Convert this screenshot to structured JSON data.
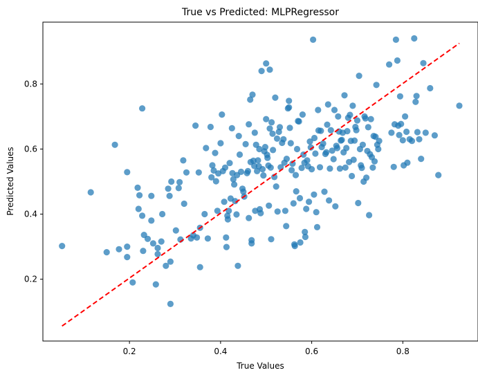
{
  "chart_data": {
    "type": "scatter",
    "title": "True vs Predicted: MLPRegressor",
    "xlabel": "True Values",
    "ylabel": "Predicted Values",
    "xlim": [
      0.01,
      0.965
    ],
    "ylim": [
      0.01,
      0.99
    ],
    "xticks": [
      0.2,
      0.4,
      0.6,
      0.8
    ],
    "yticks": [
      0.2,
      0.4,
      0.6,
      0.8
    ],
    "grid": false,
    "point_color": "#1f77b4",
    "line_color": "#ff0000",
    "reference_line": {
      "x": [
        0.052,
        0.924
      ],
      "y": [
        0.056,
        0.925
      ]
    },
    "points": [
      [
        0.052,
        0.302
      ],
      [
        0.115,
        0.467
      ],
      [
        0.15,
        0.283
      ],
      [
        0.168,
        0.613
      ],
      [
        0.177,
        0.292
      ],
      [
        0.195,
        0.529
      ],
      [
        0.195,
        0.3
      ],
      [
        0.195,
        0.268
      ],
      [
        0.207,
        0.19
      ],
      [
        0.218,
        0.481
      ],
      [
        0.22,
        0.416
      ],
      [
        0.222,
        0.458
      ],
      [
        0.228,
        0.725
      ],
      [
        0.228,
        0.395
      ],
      [
        0.23,
        0.287
      ],
      [
        0.232,
        0.336
      ],
      [
        0.24,
        0.324
      ],
      [
        0.248,
        0.456
      ],
      [
        0.248,
        0.38
      ],
      [
        0.252,
        0.31
      ],
      [
        0.258,
        0.184
      ],
      [
        0.262,
        0.296
      ],
      [
        0.262,
        0.277
      ],
      [
        0.27,
        0.316
      ],
      [
        0.272,
        0.4
      ],
      [
        0.28,
        0.241
      ],
      [
        0.285,
        0.478
      ],
      [
        0.288,
        0.456
      ],
      [
        0.29,
        0.124
      ],
      [
        0.29,
        0.254
      ],
      [
        0.292,
        0.5
      ],
      [
        0.302,
        0.35
      ],
      [
        0.308,
        0.48
      ],
      [
        0.31,
        0.498
      ],
      [
        0.312,
        0.322
      ],
      [
        0.318,
        0.565
      ],
      [
        0.32,
        0.432
      ],
      [
        0.325,
        0.528
      ],
      [
        0.335,
        0.325
      ],
      [
        0.34,
        0.335
      ],
      [
        0.345,
        0.672
      ],
      [
        0.348,
        0.328
      ],
      [
        0.352,
        0.528
      ],
      [
        0.355,
        0.358
      ],
      [
        0.355,
        0.237
      ],
      [
        0.365,
        0.4
      ],
      [
        0.368,
        0.603
      ],
      [
        0.372,
        0.325
      ],
      [
        0.378,
        0.668
      ],
      [
        0.38,
        0.513
      ],
      [
        0.382,
        0.55
      ],
      [
        0.385,
        0.534
      ],
      [
        0.388,
        0.588
      ],
      [
        0.39,
        0.501
      ],
      [
        0.393,
        0.41
      ],
      [
        0.395,
        0.525
      ],
      [
        0.4,
        0.618
      ],
      [
        0.403,
        0.706
      ],
      [
        0.405,
        0.532
      ],
      [
        0.408,
        0.438
      ],
      [
        0.41,
        0.543
      ],
      [
        0.412,
        0.328
      ],
      [
        0.413,
        0.299
      ],
      [
        0.415,
        0.395
      ],
      [
        0.416,
        0.384
      ],
      [
        0.418,
        0.41
      ],
      [
        0.42,
        0.557
      ],
      [
        0.422,
        0.448
      ],
      [
        0.425,
        0.664
      ],
      [
        0.426,
        0.526
      ],
      [
        0.428,
        0.507
      ],
      [
        0.43,
        0.491
      ],
      [
        0.432,
        0.44
      ],
      [
        0.435,
        0.399
      ],
      [
        0.436,
        0.52
      ],
      [
        0.438,
        0.241
      ],
      [
        0.44,
        0.64
      ],
      [
        0.442,
        0.583
      ],
      [
        0.445,
        0.53
      ],
      [
        0.448,
        0.478
      ],
      [
        0.45,
        0.469
      ],
      [
        0.452,
        0.454
      ],
      [
        0.455,
        0.615
      ],
      [
        0.458,
        0.526
      ],
      [
        0.46,
        0.532
      ],
      [
        0.462,
        0.388
      ],
      [
        0.462,
        0.676
      ],
      [
        0.465,
        0.752
      ],
      [
        0.466,
        0.56
      ],
      [
        0.468,
        0.32
      ],
      [
        0.468,
        0.31
      ],
      [
        0.47,
        0.767
      ],
      [
        0.472,
        0.564
      ],
      [
        0.474,
        0.548
      ],
      [
        0.475,
        0.65
      ],
      [
        0.476,
        0.41
      ],
      [
        0.478,
        0.613
      ],
      [
        0.48,
        0.532
      ],
      [
        0.482,
        0.565
      ],
      [
        0.484,
        0.547
      ],
      [
        0.485,
        0.6
      ],
      [
        0.486,
        0.415
      ],
      [
        0.488,
        0.403
      ],
      [
        0.49,
        0.84
      ],
      [
        0.492,
        0.538
      ],
      [
        0.494,
        0.519
      ],
      [
        0.496,
        0.593
      ],
      [
        0.498,
        0.606
      ],
      [
        0.5,
        0.863
      ],
      [
        0.5,
        0.692
      ],
      [
        0.502,
        0.582
      ],
      [
        0.503,
        0.573
      ],
      [
        0.505,
        0.549
      ],
      [
        0.506,
        0.426
      ],
      [
        0.508,
        0.844
      ],
      [
        0.508,
        0.663
      ],
      [
        0.51,
        0.543
      ],
      [
        0.511,
        0.323
      ],
      [
        0.512,
        0.682
      ],
      [
        0.514,
        0.647
      ],
      [
        0.515,
        0.597
      ],
      [
        0.518,
        0.514
      ],
      [
        0.52,
        0.758
      ],
      [
        0.522,
        0.485
      ],
      [
        0.524,
        0.632
      ],
      [
        0.525,
        0.408
      ],
      [
        0.528,
        0.653
      ],
      [
        0.53,
        0.667
      ],
      [
        0.532,
        0.544
      ],
      [
        0.535,
        0.619
      ],
      [
        0.538,
        0.63
      ],
      [
        0.54,
        0.558
      ],
      [
        0.542,
        0.41
      ],
      [
        0.544,
        0.363
      ],
      [
        0.545,
        0.57
      ],
      [
        0.548,
        0.725
      ],
      [
        0.55,
        0.748
      ],
      [
        0.55,
        0.728
      ],
      [
        0.552,
        0.665
      ],
      [
        0.554,
        0.618
      ],
      [
        0.556,
        0.535
      ],
      [
        0.558,
        0.555
      ],
      [
        0.56,
        0.433
      ],
      [
        0.562,
        0.307
      ],
      [
        0.563,
        0.302
      ],
      [
        0.565,
        0.52
      ],
      [
        0.566,
        0.47
      ],
      [
        0.568,
        0.6
      ],
      [
        0.57,
        0.686
      ],
      [
        0.572,
        0.685
      ],
      [
        0.574,
        0.449
      ],
      [
        0.575,
        0.313
      ],
      [
        0.578,
        0.542
      ],
      [
        0.58,
        0.706
      ],
      [
        0.582,
        0.583
      ],
      [
        0.584,
        0.558
      ],
      [
        0.585,
        0.345
      ],
      [
        0.586,
        0.33
      ],
      [
        0.588,
        0.416
      ],
      [
        0.59,
        0.565
      ],
      [
        0.592,
        0.547
      ],
      [
        0.594,
        0.438
      ],
      [
        0.596,
        0.623
      ],
      [
        0.598,
        0.605
      ],
      [
        0.6,
        0.538
      ],
      [
        0.603,
        0.936
      ],
      [
        0.605,
        0.46
      ],
      [
        0.606,
        0.634
      ],
      [
        0.608,
        0.586
      ],
      [
        0.61,
        0.406
      ],
      [
        0.612,
        0.36
      ],
      [
        0.614,
        0.72
      ],
      [
        0.615,
        0.657
      ],
      [
        0.618,
        0.544
      ],
      [
        0.62,
        0.656
      ],
      [
        0.622,
        0.606
      ],
      [
        0.625,
        0.617
      ],
      [
        0.628,
        0.469
      ],
      [
        0.63,
        0.585
      ],
      [
        0.632,
        0.59
      ],
      [
        0.634,
        0.675
      ],
      [
        0.636,
        0.737
      ],
      [
        0.638,
        0.442
      ],
      [
        0.64,
        0.54
      ],
      [
        0.642,
        0.658
      ],
      [
        0.645,
        0.595
      ],
      [
        0.648,
        0.569
      ],
      [
        0.65,
        0.72
      ],
      [
        0.652,
        0.424
      ],
      [
        0.654,
        0.61
      ],
      [
        0.656,
        0.603
      ],
      [
        0.658,
        0.7
      ],
      [
        0.66,
        0.654
      ],
      [
        0.662,
        0.54
      ],
      [
        0.664,
        0.626
      ],
      [
        0.666,
        0.628
      ],
      [
        0.668,
        0.65
      ],
      [
        0.67,
        0.59
      ],
      [
        0.672,
        0.765
      ],
      [
        0.674,
        0.543
      ],
      [
        0.676,
        0.603
      ],
      [
        0.678,
        0.655
      ],
      [
        0.68,
        0.696
      ],
      [
        0.682,
        0.56
      ],
      [
        0.684,
        0.705
      ],
      [
        0.686,
        0.625
      ],
      [
        0.688,
        0.517
      ],
      [
        0.69,
        0.733
      ],
      [
        0.692,
        0.567
      ],
      [
        0.694,
        0.626
      ],
      [
        0.696,
        0.668
      ],
      [
        0.698,
        0.658
      ],
      [
        0.7,
        0.688
      ],
      [
        0.702,
        0.434
      ],
      [
        0.704,
        0.825
      ],
      [
        0.706,
        0.6
      ],
      [
        0.708,
        0.55
      ],
      [
        0.71,
        0.542
      ],
      [
        0.712,
        0.613
      ],
      [
        0.714,
        0.5
      ],
      [
        0.716,
        0.7
      ],
      [
        0.718,
        0.694
      ],
      [
        0.72,
        0.512
      ],
      [
        0.722,
        0.594
      ],
      [
        0.724,
        0.667
      ],
      [
        0.726,
        0.397
      ],
      [
        0.728,
        0.584
      ],
      [
        0.73,
        0.692
      ],
      [
        0.732,
        0.575
      ],
      [
        0.734,
        0.543
      ],
      [
        0.736,
        0.64
      ],
      [
        0.738,
        0.562
      ],
      [
        0.74,
        0.638
      ],
      [
        0.742,
        0.797
      ],
      [
        0.744,
        0.613
      ],
      [
        0.746,
        0.6
      ],
      [
        0.748,
        0.625
      ],
      [
        0.77,
        0.86
      ],
      [
        0.775,
        0.65
      ],
      [
        0.78,
        0.545
      ],
      [
        0.782,
        0.676
      ],
      [
        0.785,
        0.936
      ],
      [
        0.788,
        0.872
      ],
      [
        0.79,
        0.672
      ],
      [
        0.792,
        0.643
      ],
      [
        0.794,
        0.762
      ],
      [
        0.796,
        0.677
      ],
      [
        0.8,
        0.627
      ],
      [
        0.802,
        0.55
      ],
      [
        0.805,
        0.7
      ],
      [
        0.808,
        0.653
      ],
      [
        0.81,
        0.558
      ],
      [
        0.815,
        0.63
      ],
      [
        0.82,
        0.625
      ],
      [
        0.825,
        0.94
      ],
      [
        0.828,
        0.745
      ],
      [
        0.83,
        0.763
      ],
      [
        0.832,
        0.652
      ],
      [
        0.836,
        0.63
      ],
      [
        0.84,
        0.57
      ],
      [
        0.845,
        0.864
      ],
      [
        0.85,
        0.65
      ],
      [
        0.86,
        0.787
      ],
      [
        0.87,
        0.642
      ],
      [
        0.878,
        0.52
      ],
      [
        0.924,
        0.733
      ]
    ]
  }
}
